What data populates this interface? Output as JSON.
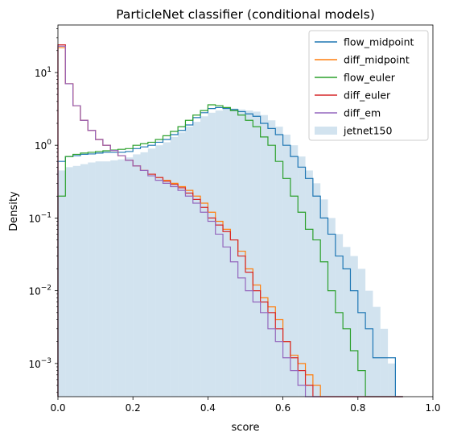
{
  "chart_data": {
    "type": "line",
    "title": "ParticleNet classifier (conditional models)",
    "xlabel": "score",
    "ylabel": "Density",
    "xlim": [
      0.0,
      1.0
    ],
    "ylim": [
      0.00035,
      45
    ],
    "yscale": "log",
    "xticks": [
      "0.0",
      "0.2",
      "0.4",
      "0.6",
      "0.8",
      "1.0"
    ],
    "yticks": [
      {
        "base": "10",
        "exp": "−3",
        "value": 0.001
      },
      {
        "base": "10",
        "exp": "−2",
        "value": 0.01
      },
      {
        "base": "10",
        "exp": "−1",
        "value": 0.1
      },
      {
        "base": "10",
        "exp": "0",
        "value": 1
      },
      {
        "base": "10",
        "exp": "1",
        "value": 10
      }
    ],
    "grid": false,
    "legend_position": "top-right",
    "bin_edges": [
      0.0,
      0.02,
      0.04,
      0.06,
      0.08,
      0.1,
      0.12,
      0.14,
      0.16,
      0.18,
      0.2,
      0.22,
      0.24,
      0.26,
      0.28,
      0.3,
      0.32,
      0.34,
      0.36,
      0.38,
      0.4,
      0.42,
      0.44,
      0.46,
      0.48,
      0.5,
      0.52,
      0.54,
      0.56,
      0.58,
      0.6,
      0.62,
      0.64,
      0.66,
      0.68,
      0.7,
      0.72,
      0.74,
      0.76,
      0.78,
      0.8,
      0.82,
      0.84,
      0.86,
      0.88,
      0.9,
      0.92
    ],
    "series": [
      {
        "name": "flow_midpoint",
        "color": "#1f77b4",
        "style": "step",
        "values": [
          0.6,
          0.7,
          0.72,
          0.75,
          0.76,
          0.78,
          0.8,
          0.8,
          0.8,
          0.82,
          0.9,
          0.95,
          1.0,
          1.1,
          1.2,
          1.4,
          1.6,
          1.9,
          2.4,
          2.8,
          3.2,
          3.3,
          3.2,
          3.1,
          2.9,
          2.7,
          2.5,
          2.0,
          1.7,
          1.4,
          1.0,
          0.7,
          0.5,
          0.35,
          0.2,
          0.1,
          0.06,
          0.03,
          0.02,
          0.01,
          0.005,
          0.003,
          0.0012,
          0.0012,
          0.0012,
          0.0
        ]
      },
      {
        "name": "diff_midpoint",
        "color": "#ff7f0e",
        "style": "step",
        "values": [
          22,
          7,
          3.5,
          2.2,
          1.6,
          1.2,
          1.0,
          0.85,
          0.72,
          0.62,
          0.52,
          0.45,
          0.4,
          0.36,
          0.33,
          0.3,
          0.27,
          0.24,
          0.2,
          0.16,
          0.12,
          0.09,
          0.07,
          0.05,
          0.035,
          0.02,
          0.012,
          0.008,
          0.006,
          0.004,
          0.002,
          0.0013,
          0.001,
          0.0007,
          0.0005,
          0.0,
          0.0,
          0.0,
          0.0,
          0.0,
          0.0,
          0.0,
          0.0,
          0.0,
          0.0,
          0.0
        ]
      },
      {
        "name": "flow_euler",
        "color": "#2ca02c",
        "style": "step",
        "values": [
          0.2,
          0.7,
          0.75,
          0.78,
          0.8,
          0.82,
          0.84,
          0.86,
          0.88,
          0.9,
          1.0,
          1.05,
          1.1,
          1.2,
          1.35,
          1.55,
          1.8,
          2.2,
          2.6,
          3.0,
          3.6,
          3.5,
          3.3,
          3.0,
          2.6,
          2.2,
          1.8,
          1.3,
          1.0,
          0.6,
          0.35,
          0.2,
          0.12,
          0.07,
          0.05,
          0.025,
          0.01,
          0.005,
          0.003,
          0.0015,
          0.0008,
          0.0002,
          0.0002,
          0.0002,
          0.0002,
          0.0
        ]
      },
      {
        "name": "diff_euler",
        "color": "#d62728",
        "style": "step",
        "values": [
          24,
          7,
          3.5,
          2.2,
          1.6,
          1.2,
          1.0,
          0.85,
          0.72,
          0.62,
          0.52,
          0.45,
          0.4,
          0.36,
          0.32,
          0.29,
          0.26,
          0.22,
          0.18,
          0.14,
          0.1,
          0.08,
          0.065,
          0.05,
          0.03,
          0.018,
          0.01,
          0.007,
          0.005,
          0.003,
          0.002,
          0.0012,
          0.0008,
          0.0005,
          0.0,
          0.0,
          0.0,
          0.0,
          0.0,
          0.0,
          0.0,
          0.0,
          0.0,
          0.0,
          0.0,
          0.0
        ]
      },
      {
        "name": "diff_em",
        "color": "#9467bd",
        "style": "step",
        "values": [
          23,
          7,
          3.5,
          2.2,
          1.6,
          1.2,
          1.0,
          0.85,
          0.72,
          0.62,
          0.52,
          0.45,
          0.38,
          0.33,
          0.3,
          0.27,
          0.24,
          0.2,
          0.16,
          0.12,
          0.09,
          0.06,
          0.04,
          0.025,
          0.015,
          0.01,
          0.007,
          0.005,
          0.003,
          0.002,
          0.0012,
          0.0008,
          0.0005,
          0.0003,
          0.0,
          0.0,
          0.0,
          0.0,
          0.0,
          0.0,
          0.0,
          0.0,
          0.0,
          0.0,
          0.0,
          0.0
        ]
      },
      {
        "name": "jetnet150",
        "color": "#a6c8e0",
        "style": "filled",
        "values": [
          0.45,
          0.5,
          0.52,
          0.55,
          0.58,
          0.6,
          0.6,
          0.62,
          0.64,
          0.68,
          0.75,
          0.8,
          0.9,
          1.0,
          1.1,
          1.3,
          1.5,
          1.8,
          2.1,
          2.5,
          2.8,
          3.0,
          3.1,
          3.2,
          3.1,
          3.0,
          2.9,
          2.6,
          2.2,
          1.8,
          1.4,
          1.0,
          0.7,
          0.45,
          0.3,
          0.18,
          0.1,
          0.06,
          0.04,
          0.03,
          0.02,
          0.01,
          0.006,
          0.003,
          0.001,
          0.0
        ]
      }
    ]
  }
}
